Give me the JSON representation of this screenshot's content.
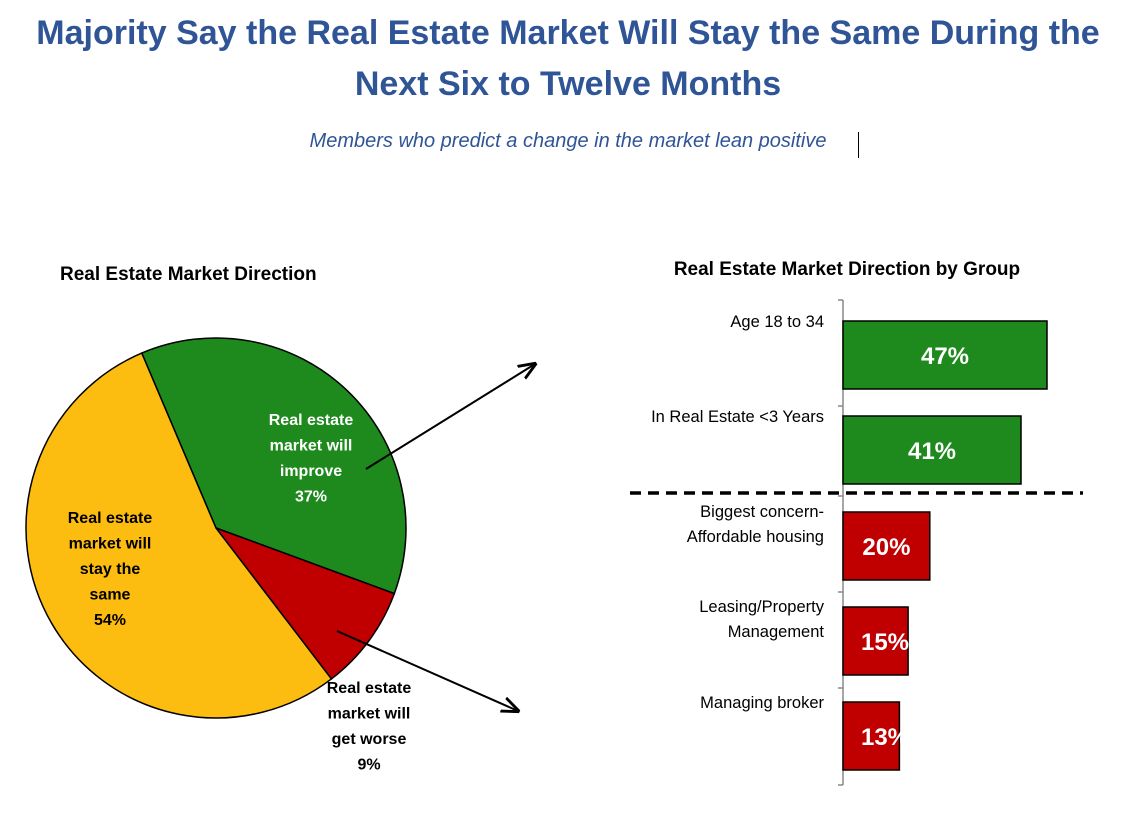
{
  "title": "Majority Say the Real Estate Market Will Stay the Same During the Next Six to Twelve Months",
  "subtitle": "Members who predict a change in the market lean positive",
  "chart_data": [
    {
      "type": "pie",
      "title": "Real Estate Market Direction",
      "slices": [
        {
          "label_lines": [
            "Real estate",
            "market will",
            "improve",
            "37%"
          ],
          "value": 37,
          "color": "#1e8a1e",
          "text_color": "#ffffff"
        },
        {
          "label_lines": [
            "Real estate",
            "market will",
            "get worse",
            "9%"
          ],
          "value": 9,
          "color": "#c00000",
          "text_color": "#000000"
        },
        {
          "label_lines": [
            "Real estate",
            "market will",
            "stay the",
            "same",
            "54%"
          ],
          "value": 54,
          "color": "#fdbd10",
          "text_color": "#000000"
        }
      ]
    },
    {
      "type": "bar",
      "orientation": "horizontal",
      "title": "Real Estate Market Direction by Group",
      "categories": [
        [
          "Age 18 to 34"
        ],
        [
          "In Real Estate <3 Years"
        ],
        [
          "Biggest concern-",
          "Affordable housing"
        ],
        [
          "Leasing/Property",
          "Management"
        ],
        [
          "Managing broker"
        ]
      ],
      "values": [
        47,
        41,
        20,
        15,
        13
      ],
      "value_labels": [
        "47%",
        "41%",
        "20%",
        "15%",
        "13%"
      ],
      "colors": [
        "#1e8a1e",
        "#1e8a1e",
        "#c00000",
        "#c00000",
        "#c00000"
      ],
      "divider": "dashed line between the second and third bars"
    }
  ]
}
